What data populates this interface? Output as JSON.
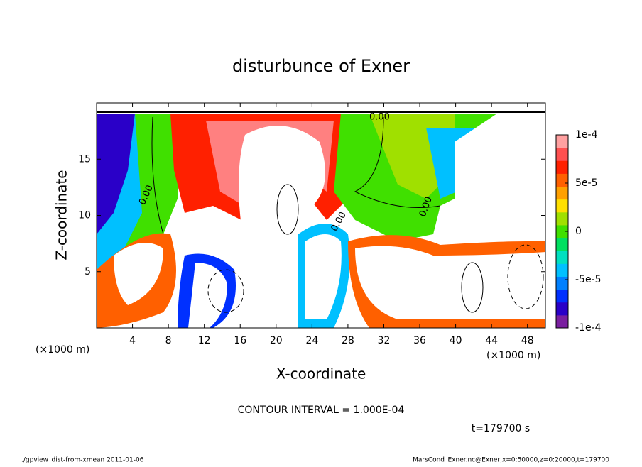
{
  "chart_data": {
    "type": "contour",
    "title": "disturbunce of Exner",
    "x_label": "X-coordinate",
    "y_label": "Z-coordinate",
    "x_unit": "(×1000 m)",
    "xlim": [
      0,
      50
    ],
    "xticks": [
      4,
      8,
      12,
      16,
      20,
      24,
      28,
      32,
      36,
      40,
      44,
      48
    ],
    "ylim": [
      0,
      20
    ],
    "yticks": [
      5,
      10,
      15
    ],
    "colorbar": {
      "lim": [
        -0.0001,
        0.0001
      ],
      "ticks": [
        {
          "value": 0.0001,
          "label": "1e-4"
        },
        {
          "value": 5e-05,
          "label": "5e-5"
        },
        0,
        {
          "value": -5e-05,
          "label": "-5e-5"
        },
        {
          "value": -0.0001,
          "label": "-1e-4"
        }
      ],
      "colors": [
        "#7a1fa0",
        "#2a00c8",
        "#0030ff",
        "#0080ff",
        "#00c0ff",
        "#00e0c0",
        "#00e060",
        "#40e000",
        "#a0e000",
        "#ffe000",
        "#ffa000",
        "#ff6000",
        "#ff2000",
        "#ff5050",
        "#ffa0a0"
      ]
    },
    "contour_labels": [
      "0.00",
      "0.00",
      "0.00",
      "0.00"
    ],
    "contour_interval": "CONTOUR INTERVAL = 1.000E-04",
    "time_label": "t=179700 s",
    "footer_left": "./gpview_dist-from-xmean  2011-01-06",
    "footer_right": "MarsCond_Exner.nc@Exner,x=0:50000,z=0:20000,t=179700"
  }
}
